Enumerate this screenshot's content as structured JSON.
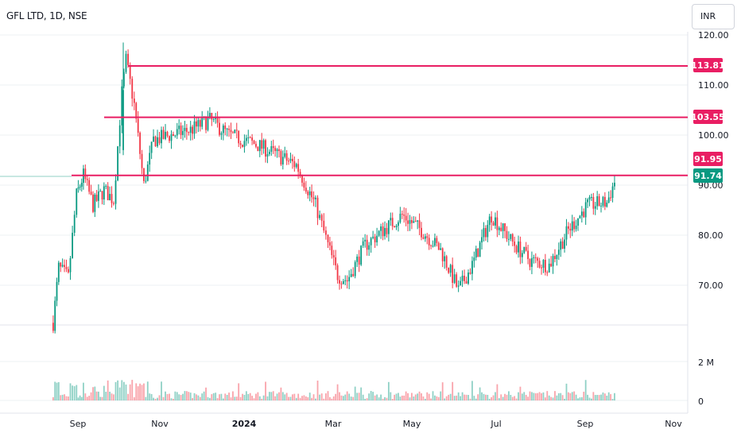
{
  "header": {
    "title": "GFL LTD, 1D, NSE",
    "currency": "INR"
  },
  "colors": {
    "up": "#089981",
    "down": "#f23645",
    "line": "#e91e63",
    "current": "#089981",
    "grid": "#eef0f3",
    "axis_text": "#131722"
  },
  "chart_data": {
    "type": "candlestick",
    "title": "GFL LTD, 1D, NSE",
    "currency": "INR",
    "x_ticks": [
      "Sep",
      "Nov",
      "2024",
      "Mar",
      "May",
      "Jul",
      "Sep",
      "Nov"
    ],
    "y_ticks": [
      "120.00",
      "110.00",
      "100.00",
      "90.00",
      "80.00",
      "70.00"
    ],
    "volume_ticks": [
      "2 M",
      "0"
    ],
    "ylim": [
      62,
      120
    ],
    "horizontal_lines": [
      113.81,
      103.55,
      91.95
    ],
    "price_labels": [
      {
        "text": "113.81",
        "value": 113.81,
        "kind": "level"
      },
      {
        "text": "103.55",
        "value": 103.55,
        "kind": "level"
      },
      {
        "text": "91.95",
        "value": 91.95,
        "kind": "level-high"
      },
      {
        "text": "91.74",
        "value": 91.74,
        "kind": "last"
      }
    ],
    "last_price": 91.74,
    "approx_close_path": [
      [
        "2023-08-14",
        62.5
      ],
      [
        "2023-08-18",
        73.5
      ],
      [
        "2023-08-25",
        71.5
      ],
      [
        "2023-08-31",
        88.0
      ],
      [
        "2023-09-05",
        92.0
      ],
      [
        "2023-09-12",
        86.0
      ],
      [
        "2023-09-20",
        89.0
      ],
      [
        "2023-09-27",
        87.0
      ],
      [
        "2023-10-03",
        108.5
      ],
      [
        "2023-10-06",
        115.0
      ],
      [
        "2023-10-12",
        106.0
      ],
      [
        "2023-10-19",
        90.0
      ],
      [
        "2023-10-26",
        99.0
      ],
      [
        "2023-11-08",
        100.0
      ],
      [
        "2023-11-22",
        101.0
      ],
      [
        "2023-12-06",
        103.0
      ],
      [
        "2023-12-20",
        100.0
      ],
      [
        "2024-01-10",
        98.0
      ],
      [
        "2024-01-24",
        96.0
      ],
      [
        "2024-02-07",
        94.0
      ],
      [
        "2024-02-21",
        86.0
      ],
      [
        "2024-03-01",
        78.0
      ],
      [
        "2024-03-08",
        72.0
      ],
      [
        "2024-03-15",
        71.0
      ],
      [
        "2024-03-28",
        78.0
      ],
      [
        "2024-04-10",
        81.0
      ],
      [
        "2024-04-24",
        84.0
      ],
      [
        "2024-05-08",
        81.0
      ],
      [
        "2024-05-22",
        77.0
      ],
      [
        "2024-06-04",
        69.0
      ],
      [
        "2024-06-14",
        74.0
      ],
      [
        "2024-06-28",
        84.0
      ],
      [
        "2024-07-12",
        79.0
      ],
      [
        "2024-07-26",
        75.0
      ],
      [
        "2024-08-09",
        74.0
      ],
      [
        "2024-08-23",
        81.0
      ],
      [
        "2024-09-06",
        86.0
      ],
      [
        "2024-09-20",
        86.5
      ],
      [
        "2024-09-27",
        91.74
      ]
    ]
  }
}
